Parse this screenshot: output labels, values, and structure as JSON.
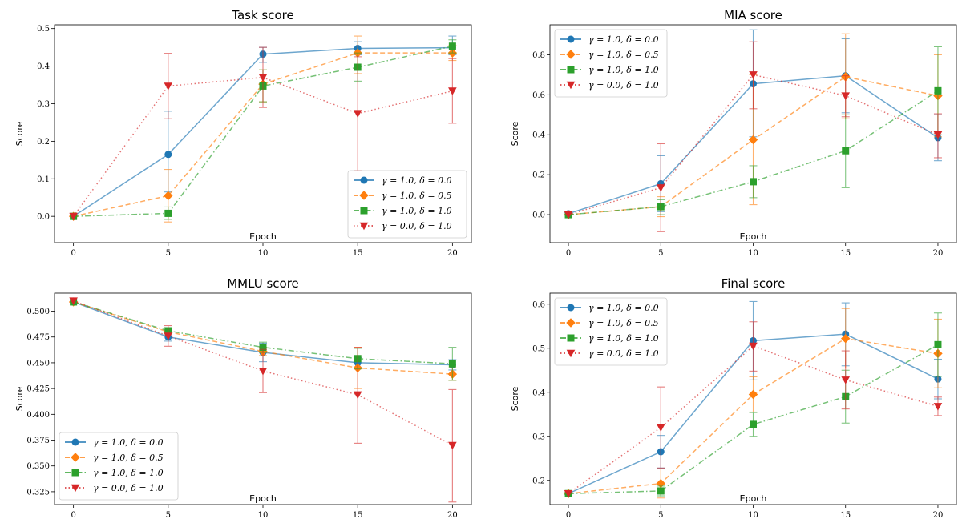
{
  "figure": {
    "colors": {
      "blue": "#1f77b4",
      "orange": "#ff7f0e",
      "green": "#2ca02c",
      "red": "#d62728"
    }
  },
  "chart_data": [
    {
      "type": "line",
      "title": "Task score",
      "xlabel": "Epoch",
      "ylabel": "Score",
      "x": [
        0,
        5,
        10,
        15,
        20
      ],
      "xlim": [
        -1,
        21
      ],
      "ylim": [
        -0.07,
        0.51
      ],
      "xticks": [
        "0",
        "5",
        "10",
        "15",
        "20"
      ],
      "yticks": [
        0.0,
        0.1,
        0.2,
        0.3,
        0.4,
        0.5
      ],
      "ytick_labels": [
        "0.0",
        "0.1",
        "0.2",
        "0.3",
        "0.4",
        "0.5"
      ],
      "legend_position": "lower-right",
      "series": [
        {
          "name": "γ = 1.0, δ = 0.0",
          "color": "#1f77b4",
          "marker": "circle",
          "linestyle": "solid",
          "values": [
            0.0,
            0.165,
            0.432,
            0.447,
            0.449
          ],
          "err_low": [
            0.0,
            0.065,
            0.41,
            0.43,
            0.43
          ],
          "err_high": [
            0.0,
            0.28,
            0.45,
            0.465,
            0.48
          ]
        },
        {
          "name": "γ = 1.0, δ = 0.5",
          "color": "#ff7f0e",
          "marker": "diamond",
          "linestyle": "dashed",
          "values": [
            0.0,
            0.055,
            0.352,
            0.435,
            0.435
          ],
          "err_low": [
            0.0,
            -0.015,
            0.305,
            0.38,
            0.415
          ],
          "err_high": [
            0.0,
            0.125,
            0.39,
            0.48,
            0.455
          ]
        },
        {
          "name": "γ = 1.0, δ = 1.0",
          "color": "#2ca02c",
          "marker": "square",
          "linestyle": "dashdot",
          "values": [
            0.0,
            0.008,
            0.347,
            0.397,
            0.453
          ],
          "err_low": [
            0.0,
            -0.008,
            0.305,
            0.36,
            0.435
          ],
          "err_high": [
            0.0,
            0.025,
            0.39,
            0.435,
            0.47
          ]
        },
        {
          "name": "γ = 0.0, δ = 1.0",
          "color": "#d62728",
          "marker": "triangle-down",
          "linestyle": "dotted",
          "values": [
            0.0,
            0.347,
            0.37,
            0.274,
            0.334
          ],
          "err_low": [
            0.0,
            0.26,
            0.29,
            0.122,
            0.248
          ],
          "err_high": [
            0.0,
            0.434,
            0.45,
            0.425,
            0.42
          ]
        }
      ]
    },
    {
      "type": "line",
      "title": "MIA score",
      "xlabel": "Epoch",
      "ylabel": "Score",
      "x": [
        0,
        5,
        10,
        15,
        20
      ],
      "xlim": [
        -1,
        21
      ],
      "ylim": [
        -0.14,
        0.95
      ],
      "xticks": [
        "0",
        "5",
        "10",
        "15",
        "20"
      ],
      "yticks": [
        0.0,
        0.2,
        0.4,
        0.6,
        0.8
      ],
      "ytick_labels": [
        "0.0",
        "0.2",
        "0.4",
        "0.6",
        "0.8"
      ],
      "legend_position": "upper-left",
      "series": [
        {
          "name": "γ = 1.0, δ = 0.0",
          "color": "#1f77b4",
          "marker": "circle",
          "linestyle": "solid",
          "values": [
            0.005,
            0.155,
            0.655,
            0.695,
            0.385
          ],
          "err_low": [
            0.0,
            0.015,
            0.39,
            0.51,
            0.27
          ],
          "err_high": [
            0.01,
            0.295,
            0.925,
            0.88,
            0.5
          ]
        },
        {
          "name": "γ = 1.0, δ = 0.5",
          "color": "#ff7f0e",
          "marker": "diamond",
          "linestyle": "dashed",
          "values": [
            0.0,
            0.04,
            0.375,
            0.69,
            0.595
          ],
          "err_low": [
            0.0,
            -0.01,
            0.05,
            0.48,
            0.39
          ],
          "err_high": [
            0.0,
            0.09,
            0.7,
            0.905,
            0.8
          ]
        },
        {
          "name": "γ = 1.0, δ = 1.0",
          "color": "#2ca02c",
          "marker": "square",
          "linestyle": "dashdot",
          "values": [
            0.0,
            0.04,
            0.165,
            0.32,
            0.62
          ],
          "err_low": [
            0.0,
            0.0,
            0.085,
            0.135,
            0.4
          ],
          "err_high": [
            0.0,
            0.075,
            0.245,
            0.5,
            0.84
          ]
        },
        {
          "name": "γ = 0.0, δ = 1.0",
          "color": "#d62728",
          "marker": "triangle-down",
          "linestyle": "dotted",
          "values": [
            0.0,
            0.135,
            0.7,
            0.595,
            0.4
          ],
          "err_low": [
            0.0,
            -0.085,
            0.53,
            0.49,
            0.285
          ],
          "err_high": [
            0.0,
            0.355,
            0.865,
            0.695,
            0.505
          ]
        }
      ]
    },
    {
      "type": "line",
      "title": "MMLU score",
      "xlabel": "Epoch",
      "ylabel": "Score",
      "x": [
        0,
        5,
        10,
        15,
        20
      ],
      "xlim": [
        -1,
        21
      ],
      "ylim": [
        0.3125,
        0.5175
      ],
      "xticks": [
        "0",
        "5",
        "10",
        "15",
        "20"
      ],
      "yticks": [
        0.325,
        0.35,
        0.375,
        0.4,
        0.425,
        0.45,
        0.475,
        0.5
      ],
      "ytick_labels": [
        "0.325",
        "0.350",
        "0.375",
        "0.400",
        "0.425",
        "0.450",
        "0.475",
        "0.500"
      ],
      "legend_position": "lower-left",
      "series": [
        {
          "name": "γ = 1.0, δ = 0.0",
          "color": "#1f77b4",
          "marker": "circle",
          "linestyle": "solid",
          "values": [
            0.509,
            0.475,
            0.46,
            0.45,
            0.448
          ],
          "err_low": [
            0.509,
            0.471,
            0.451,
            0.445,
            0.443
          ],
          "err_high": [
            0.509,
            0.479,
            0.469,
            0.455,
            0.453
          ]
        },
        {
          "name": "γ = 1.0, δ = 0.5",
          "color": "#ff7f0e",
          "marker": "diamond",
          "linestyle": "dashed",
          "values": [
            0.509,
            0.48,
            0.461,
            0.445,
            0.439
          ],
          "err_low": [
            0.509,
            0.476,
            0.457,
            0.425,
            0.433
          ],
          "err_high": [
            0.509,
            0.484,
            0.465,
            0.465,
            0.445
          ]
        },
        {
          "name": "γ = 1.0, δ = 1.0",
          "color": "#2ca02c",
          "marker": "square",
          "linestyle": "dashdot",
          "values": [
            0.509,
            0.481,
            0.465,
            0.454,
            0.449
          ],
          "err_low": [
            0.509,
            0.478,
            0.46,
            0.444,
            0.433
          ],
          "err_high": [
            0.509,
            0.484,
            0.47,
            0.464,
            0.465
          ]
        },
        {
          "name": "γ = 0.0, δ = 1.0",
          "color": "#d62728",
          "marker": "triangle-down",
          "linestyle": "dotted",
          "values": [
            0.51,
            0.476,
            0.442,
            0.419,
            0.37
          ],
          "err_low": [
            0.51,
            0.466,
            0.421,
            0.372,
            0.315
          ],
          "err_high": [
            0.51,
            0.486,
            0.463,
            0.465,
            0.424
          ]
        }
      ]
    },
    {
      "type": "line",
      "title": "Final score",
      "xlabel": "Epoch",
      "ylabel": "Score",
      "x": [
        0,
        5,
        10,
        15,
        20
      ],
      "xlim": [
        -1,
        21
      ],
      "ylim": [
        0.145,
        0.625
      ],
      "xticks": [
        "0",
        "5",
        "10",
        "15",
        "20"
      ],
      "yticks": [
        0.2,
        0.3,
        0.4,
        0.5,
        0.6
      ],
      "ytick_labels": [
        "0.2",
        "0.3",
        "0.4",
        "0.5",
        "0.6"
      ],
      "legend_position": "upper-left",
      "series": [
        {
          "name": "γ = 1.0, δ = 0.0",
          "color": "#1f77b4",
          "marker": "circle",
          "linestyle": "solid",
          "values": [
            0.17,
            0.265,
            0.517,
            0.532,
            0.43
          ],
          "err_low": [
            0.168,
            0.228,
            0.428,
            0.46,
            0.385
          ],
          "err_high": [
            0.172,
            0.302,
            0.606,
            0.603,
            0.475
          ]
        },
        {
          "name": "γ = 1.0, δ = 0.5",
          "color": "#ff7f0e",
          "marker": "diamond",
          "linestyle": "dashed",
          "values": [
            0.17,
            0.193,
            0.395,
            0.522,
            0.488
          ],
          "err_low": [
            0.17,
            0.16,
            0.355,
            0.455,
            0.41
          ],
          "err_high": [
            0.17,
            0.226,
            0.435,
            0.59,
            0.566
          ]
        },
        {
          "name": "γ = 1.0, δ = 1.0",
          "color": "#2ca02c",
          "marker": "square",
          "linestyle": "dashdot",
          "values": [
            0.17,
            0.176,
            0.327,
            0.39,
            0.508
          ],
          "err_low": [
            0.17,
            0.165,
            0.3,
            0.33,
            0.436
          ],
          "err_high": [
            0.17,
            0.187,
            0.354,
            0.45,
            0.58
          ]
        },
        {
          "name": "γ = 0.0, δ = 1.0",
          "color": "#d62728",
          "marker": "triangle-down",
          "linestyle": "dotted",
          "values": [
            0.17,
            0.32,
            0.505,
            0.428,
            0.368
          ],
          "err_low": [
            0.17,
            0.228,
            0.448,
            0.362,
            0.347
          ],
          "err_high": [
            0.17,
            0.412,
            0.56,
            0.494,
            0.389
          ]
        }
      ]
    }
  ]
}
